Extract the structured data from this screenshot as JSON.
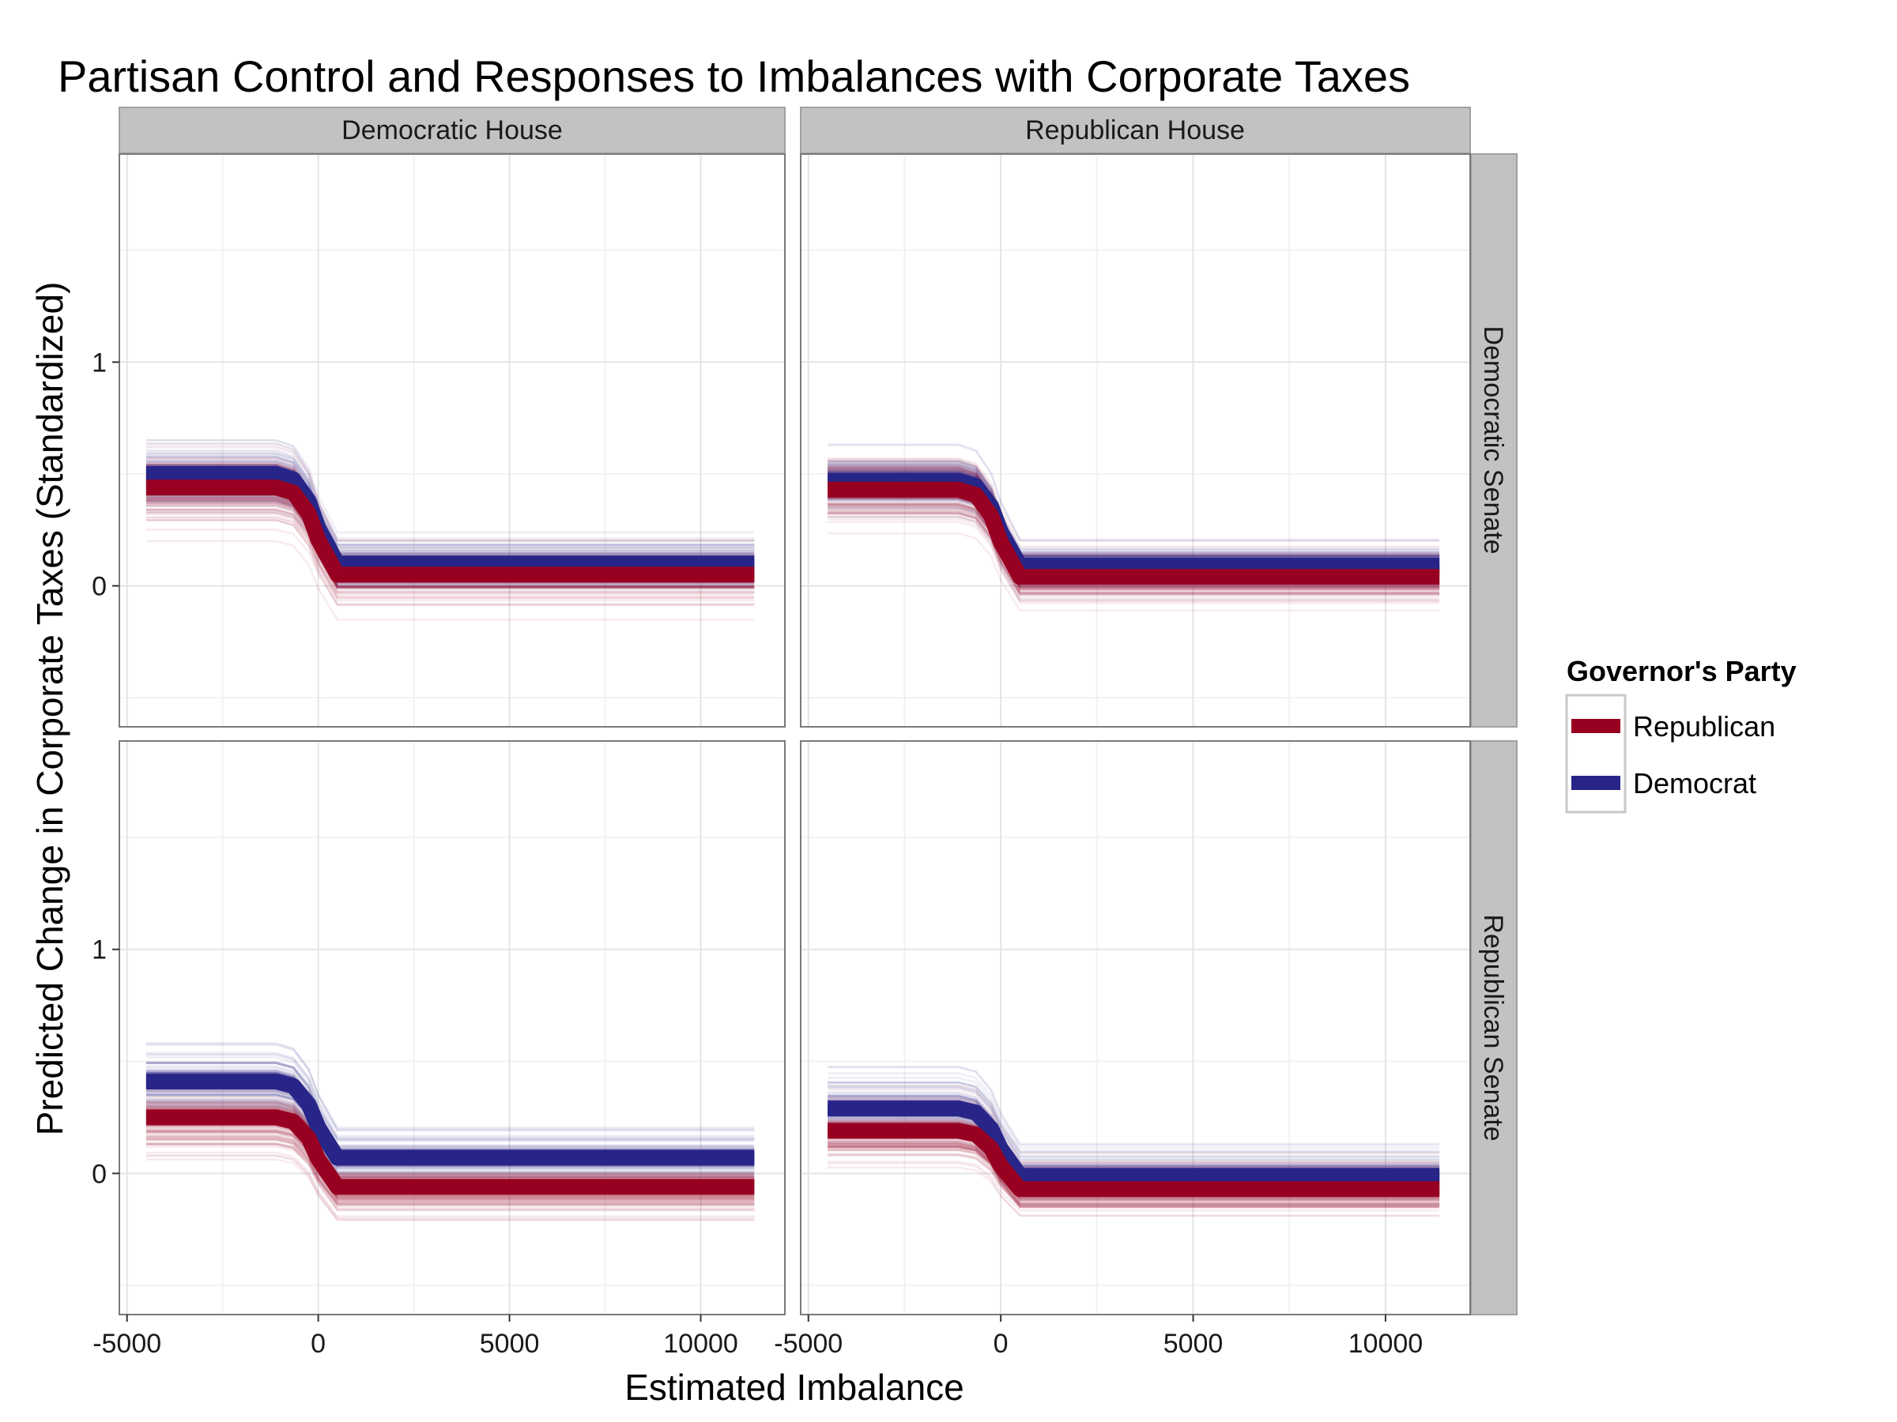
{
  "chart_data": {
    "type": "line",
    "title": "Partisan Control and Responses to Imbalances with Corporate Taxes",
    "xlabel": "Estimated Imbalance",
    "ylabel": "Predicted Change in Corporate Taxes (Standardized)",
    "xlim": [
      -5200,
      12200
    ],
    "ylim": [
      -0.63,
      1.93
    ],
    "x_ticks": [
      -5000,
      0,
      5000,
      10000
    ],
    "x_tick_labels": [
      "-5000",
      "0",
      "5000",
      "10000"
    ],
    "y_ticks": [
      0,
      1
    ],
    "y_tick_labels": [
      "0",
      "1"
    ],
    "grid": true,
    "legend_position": "right",
    "legend": {
      "title": "Governor's Party",
      "entries": [
        {
          "label": "Republican",
          "color": "#980021"
        },
        {
          "label": "Democrat",
          "color": "#272587"
        }
      ]
    },
    "facets": {
      "columns": [
        "Democratic House",
        "Republican House"
      ],
      "rows": [
        "Democratic Senate",
        "Republican Senate"
      ]
    },
    "curve_x": [
      -4500,
      -1100,
      -650,
      -250,
      0,
      500,
      11400
    ],
    "panels": [
      {
        "column": "Democratic House",
        "row": "Democratic Senate",
        "series": [
          {
            "name": "Democrat",
            "start": 0.5,
            "end": 0.1
          },
          {
            "name": "Republican",
            "start": 0.44,
            "end": 0.05
          }
        ]
      },
      {
        "column": "Republican House",
        "row": "Democratic Senate",
        "series": [
          {
            "name": "Democrat",
            "start": 0.47,
            "end": 0.09
          },
          {
            "name": "Republican",
            "start": 0.43,
            "end": 0.04
          }
        ]
      },
      {
        "column": "Democratic House",
        "row": "Republican Senate",
        "series": [
          {
            "name": "Democrat",
            "start": 0.41,
            "end": 0.07
          },
          {
            "name": "Republican",
            "start": 0.25,
            "end": -0.06
          }
        ]
      },
      {
        "column": "Republican House",
        "row": "Republican Senate",
        "series": [
          {
            "name": "Democrat",
            "start": 0.29,
            "end": -0.01
          },
          {
            "name": "Republican",
            "start": 0.19,
            "end": -0.07
          }
        ]
      }
    ]
  }
}
